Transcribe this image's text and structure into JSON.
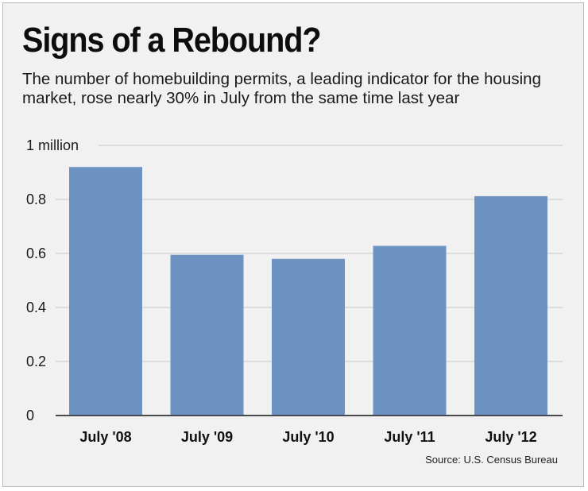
{
  "title": "Signs of a Rebound?",
  "subtitle": "The number of homebuilding permits, a leading indicator for the housing market, rose nearly 30% in July from the same time last year",
  "source": "Source: U.S. Census Bureau",
  "colors": {
    "bar": "#6c93c2",
    "grid": "#c7c7c7",
    "background": "#f1f1f1"
  },
  "chart_data": {
    "type": "bar",
    "title": "Signs of a Rebound?",
    "xlabel": "",
    "ylabel": "",
    "categories": [
      "July '08",
      "July '09",
      "July '10",
      "July '11",
      "July '12"
    ],
    "values": [
      0.92,
      0.595,
      0.58,
      0.628,
      0.812
    ],
    "ylim": [
      0,
      1
    ],
    "yticks": [
      0,
      0.2,
      0.4,
      0.6,
      0.8,
      1
    ],
    "ytick_labels": [
      "0",
      "0.2",
      "0.4",
      "0.6",
      "0.8",
      "1 million"
    ],
    "grid": true,
    "units": "million permits"
  }
}
